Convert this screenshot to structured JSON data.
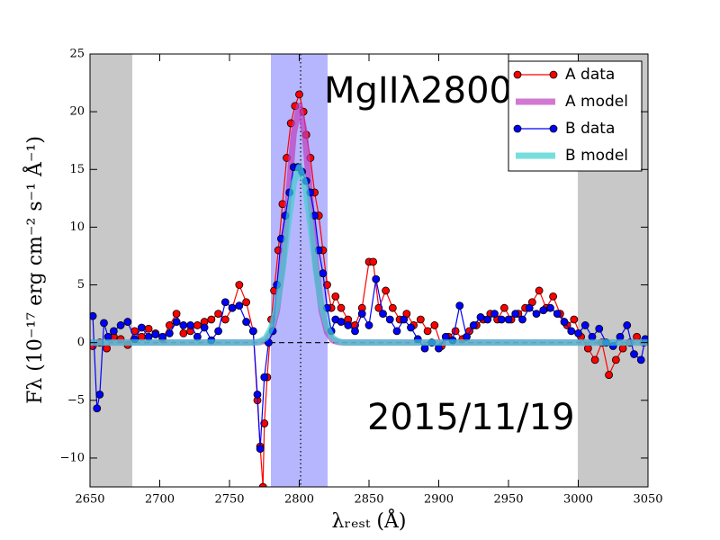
{
  "chart_data": {
    "type": "line",
    "xlabel": "λᵣₑₛₜ (Å)",
    "ylabel": "Fλ (10⁻¹⁷ erg cm⁻² s⁻¹ Å⁻¹)",
    "annotations": [
      "MgIIλ2800",
      "2015/11/19"
    ],
    "xlim": [
      2650,
      3050
    ],
    "ylim": [
      -12.5,
      25
    ],
    "xticks": [
      2650,
      2700,
      2750,
      2800,
      2850,
      2900,
      2950,
      3000,
      3050
    ],
    "yticks": [
      {
        "value": -10,
        "label": "−10"
      },
      {
        "value": -5,
        "label": "−5"
      },
      0,
      5,
      10,
      15,
      20,
      25
    ],
    "legend": "upper right",
    "shaded_regions": [
      {
        "xlim": [
          2650,
          2680
        ],
        "color": "#bfbfbf"
      },
      {
        "xlim": [
          3000,
          3050
        ],
        "color": "#bfbfbf"
      },
      {
        "xlim": [
          2780,
          2820
        ],
        "color": "#aaaaff"
      }
    ],
    "vlines": [
      2801
    ],
    "hlines": [
      0
    ],
    "series": [
      {
        "name": "A data",
        "color": "#ff0000",
        "style": "line-marker",
        "x": [
          2652,
          2657,
          2662,
          2667,
          2672,
          2677,
          2682,
          2687,
          2692,
          2697,
          2702,
          2707,
          2712,
          2717,
          2722,
          2727,
          2732,
          2737,
          2742,
          2747,
          2752,
          2757,
          2762,
          2767,
          2770,
          2772,
          2774,
          2775,
          2777,
          2780,
          2782,
          2785,
          2788,
          2791,
          2794,
          2797,
          2800,
          2803,
          2805,
          2808,
          2811,
          2814,
          2817,
          2820,
          2823,
          2826,
          2830,
          2835,
          2840,
          2845,
          2850,
          2853,
          2857,
          2862,
          2867,
          2872,
          2877,
          2882,
          2887,
          2892,
          2897,
          2902,
          2907,
          2912,
          2917,
          2922,
          2927,
          2932,
          2937,
          2942,
          2947,
          2952,
          2957,
          2962,
          2967,
          2972,
          2977,
          2982,
          2987,
          2992,
          2997,
          3002,
          3007,
          3012,
          3017,
          3022,
          3027,
          3032,
          3037,
          3042,
          3047
        ],
        "values": [
          -0.3,
          0,
          -0.5,
          0.5,
          0.3,
          -0.2,
          1,
          0.5,
          1.2,
          0.8,
          0.3,
          1.5,
          2.5,
          0.8,
          1,
          1.5,
          1.8,
          2,
          2.5,
          2,
          3,
          5,
          3.5,
          1,
          -5,
          -9,
          -12.5,
          -7,
          -3,
          2,
          4.5,
          8,
          12,
          16,
          19,
          20.5,
          21.5,
          20,
          18,
          16,
          13,
          11,
          8,
          5,
          3,
          4,
          3,
          2,
          1.5,
          3,
          7,
          7,
          3,
          4.5,
          3,
          2,
          2.5,
          1.5,
          2,
          1,
          1.5,
          -0.3,
          0.5,
          1,
          0.3,
          1,
          1.5,
          2,
          2.5,
          2,
          3,
          2,
          2.5,
          3,
          3.5,
          4.5,
          3,
          4,
          2.5,
          1.5,
          2,
          0.5,
          -0.5,
          -1.5,
          0,
          -2.8,
          -1.5,
          -0.5,
          0,
          0.5,
          0
        ]
      },
      {
        "name": "A model",
        "color": "#bf3fbf",
        "style": "thick",
        "x": [
          2650,
          2768,
          2772,
          2776,
          2780,
          2784,
          2788,
          2792,
          2796,
          2800,
          2804,
          2808,
          2812,
          2816,
          2820,
          2824,
          2828,
          2832,
          3050
        ],
        "values": [
          0,
          0,
          0.05,
          0.2,
          0.9,
          2.8,
          6.7,
          12.4,
          18.1,
          20.5,
          18.1,
          12.4,
          6.7,
          2.8,
          0.9,
          0.2,
          0.05,
          0,
          0
        ]
      },
      {
        "name": "B data",
        "color": "#0000ff",
        "style": "line-marker",
        "x": [
          2652,
          2655,
          2657,
          2660,
          2663,
          2667,
          2672,
          2677,
          2682,
          2687,
          2692,
          2697,
          2702,
          2707,
          2712,
          2717,
          2722,
          2727,
          2732,
          2737,
          2742,
          2747,
          2752,
          2757,
          2762,
          2767,
          2770,
          2772,
          2775,
          2778,
          2781,
          2784,
          2787,
          2790,
          2793,
          2796,
          2799,
          2802,
          2805,
          2808,
          2811,
          2814,
          2817,
          2820,
          2823,
          2826,
          2830,
          2835,
          2840,
          2845,
          2850,
          2855,
          2860,
          2865,
          2870,
          2875,
          2880,
          2885,
          2890,
          2895,
          2900,
          2905,
          2910,
          2915,
          2920,
          2925,
          2930,
          2935,
          2940,
          2945,
          2950,
          2955,
          2960,
          2965,
          2970,
          2975,
          2980,
          2985,
          2990,
          2995,
          3000,
          3005,
          3010,
          3015,
          3020,
          3025,
          3030,
          3035,
          3040,
          3045,
          3048
        ],
        "values": [
          2.3,
          -5.7,
          -4.5,
          1.7,
          0.5,
          1,
          1.5,
          1.8,
          0.3,
          1.3,
          0.5,
          0.7,
          0.5,
          0.8,
          1.8,
          1.5,
          1.5,
          0.5,
          1.3,
          0.2,
          1,
          3.5,
          3,
          3.2,
          1.8,
          1,
          -4.5,
          -9.2,
          -3,
          0,
          1,
          5,
          9,
          11,
          13,
          15.2,
          15.2,
          14.8,
          14,
          13,
          11,
          8,
          6,
          3,
          1,
          2,
          1.8,
          1.5,
          1,
          2.5,
          1.5,
          5.5,
          2.5,
          2,
          1,
          2,
          1.3,
          0.3,
          -0.5,
          0,
          -0.5,
          0.5,
          0.2,
          3.2,
          0.5,
          1.5,
          2.2,
          2,
          2.5,
          2,
          2,
          2.5,
          2,
          3,
          2.5,
          2.8,
          3,
          2.5,
          1.8,
          1,
          0.8,
          1.5,
          0.5,
          1.2,
          0,
          -0.3,
          0.5,
          1.5,
          -1,
          -1.5,
          0.3
        ]
      },
      {
        "name": "B model",
        "color": "#40d0d0",
        "style": "thick",
        "x": [
          2650,
          2768,
          2772,
          2776,
          2780,
          2784,
          2788,
          2792,
          2796,
          2800,
          2804,
          2808,
          2812,
          2816,
          2820,
          2824,
          2828,
          2832,
          3050
        ],
        "values": [
          0,
          0,
          0.1,
          0.4,
          1.3,
          3.1,
          6.2,
          10.2,
          13.8,
          15.2,
          13.8,
          10.2,
          6.2,
          3.1,
          1.3,
          0.4,
          0.1,
          0,
          0
        ]
      }
    ]
  }
}
